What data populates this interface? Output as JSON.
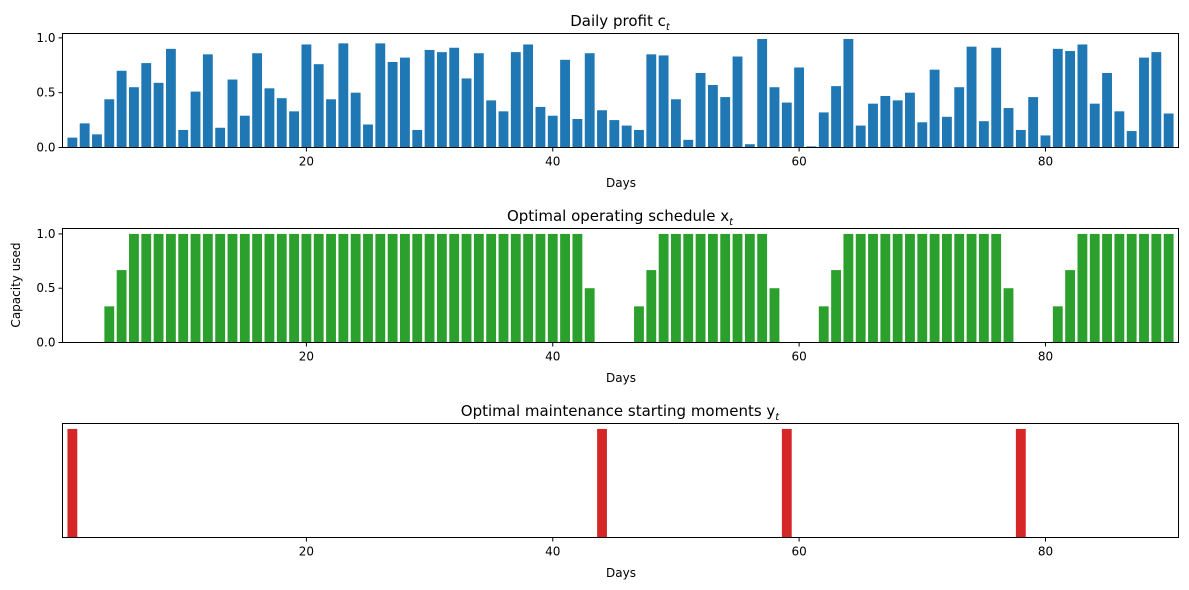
{
  "chart_data": [
    {
      "type": "bar",
      "title": "Daily profit c",
      "title_subscript": "t",
      "xlabel": "Days",
      "ylabel": "",
      "color": "#1f77b4",
      "xlim": [
        0.2,
        90.8
      ],
      "ylim": [
        0,
        1.04
      ],
      "xticks": [
        20,
        40,
        60,
        80
      ],
      "yticks": [
        "0.0",
        "0.5",
        "1.0"
      ],
      "show_yticks": true,
      "x_start": 1,
      "values": [
        0.09,
        0.22,
        0.12,
        0.44,
        0.7,
        0.55,
        0.77,
        0.59,
        0.9,
        0.16,
        0.51,
        0.85,
        0.18,
        0.62,
        0.29,
        0.86,
        0.54,
        0.45,
        0.33,
        0.94,
        0.76,
        0.44,
        0.95,
        0.5,
        0.21,
        0.95,
        0.78,
        0.82,
        0.16,
        0.89,
        0.87,
        0.91,
        0.63,
        0.86,
        0.43,
        0.33,
        0.87,
        0.94,
        0.37,
        0.29,
        0.8,
        0.26,
        0.86,
        0.34,
        0.25,
        0.2,
        0.16,
        0.85,
        0.84,
        0.44,
        0.07,
        0.68,
        0.57,
        0.46,
        0.83,
        0.03,
        0.99,
        0.55,
        0.41,
        0.73,
        0.01,
        0.32,
        0.56,
        0.99,
        0.2,
        0.4,
        0.47,
        0.43,
        0.5,
        0.23,
        0.71,
        0.28,
        0.55,
        0.92,
        0.24,
        0.91,
        0.36,
        0.16,
        0.46,
        0.11,
        0.9,
        0.88,
        0.94,
        0.4,
        0.68,
        0.33,
        0.15,
        0.82,
        0.87,
        0.31
      ]
    },
    {
      "type": "bar",
      "title": "Optimal operating schedule x",
      "title_subscript": "t",
      "xlabel": "Days",
      "ylabel": "Capacity used",
      "color": "#2ca02c",
      "xlim": [
        0.2,
        90.8
      ],
      "ylim": [
        0,
        1.05
      ],
      "xticks": [
        20,
        40,
        60,
        80
      ],
      "yticks": [
        "0.0",
        "0.5",
        "1.0"
      ],
      "show_yticks": true,
      "x_start": 1,
      "values": [
        0,
        0,
        0,
        0.333,
        0.667,
        1,
        1,
        1,
        1,
        1,
        1,
        1,
        1,
        1,
        1,
        1,
        1,
        1,
        1,
        1,
        1,
        1,
        1,
        1,
        1,
        1,
        1,
        1,
        1,
        1,
        1,
        1,
        1,
        1,
        1,
        1,
        1,
        1,
        1,
        1,
        1,
        1,
        0.5,
        0,
        0,
        0,
        0.333,
        0.667,
        1,
        1,
        1,
        1,
        1,
        1,
        1,
        1,
        1,
        0.5,
        0,
        0,
        0,
        0.333,
        0.667,
        1,
        1,
        1,
        1,
        1,
        1,
        1,
        1,
        1,
        1,
        1,
        1,
        1,
        0.5,
        0,
        0,
        0,
        0.333,
        0.667,
        1,
        1,
        1,
        1,
        1,
        1,
        1,
        1
      ]
    },
    {
      "type": "bar",
      "title": "Optimal maintenance starting moments y",
      "title_subscript": "t",
      "xlabel": "Days",
      "ylabel": "",
      "color": "#d62728",
      "xlim": [
        0.2,
        90.8
      ],
      "ylim": [
        0,
        1.05
      ],
      "xticks": [
        20,
        40,
        60,
        80
      ],
      "yticks": [],
      "show_yticks": false,
      "x_start": 1,
      "values": [
        1,
        0,
        0,
        0,
        0,
        0,
        0,
        0,
        0,
        0,
        0,
        0,
        0,
        0,
        0,
        0,
        0,
        0,
        0,
        0,
        0,
        0,
        0,
        0,
        0,
        0,
        0,
        0,
        0,
        0,
        0,
        0,
        0,
        0,
        0,
        0,
        0,
        0,
        0,
        0,
        0,
        0,
        0,
        1,
        0,
        0,
        0,
        0,
        0,
        0,
        0,
        0,
        0,
        0,
        0,
        0,
        0,
        0,
        1,
        0,
        0,
        0,
        0,
        0,
        0,
        0,
        0,
        0,
        0,
        0,
        0,
        0,
        0,
        0,
        0,
        0,
        0,
        1,
        0,
        0,
        0,
        0,
        0,
        0,
        0,
        0,
        0,
        0,
        0,
        0
      ]
    }
  ]
}
